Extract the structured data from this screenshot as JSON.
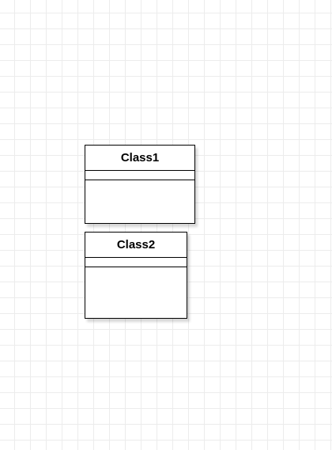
{
  "canvas": {
    "background": "#ffffff",
    "grid_color": "#ececec",
    "grid": true
  },
  "classes": [
    {
      "name": "Class1",
      "attributes": [],
      "operations": []
    },
    {
      "name": "Class2",
      "attributes": [],
      "operations": []
    }
  ],
  "colors": {
    "stroke": "#000000",
    "fill": "#ffffff",
    "text": "#000000"
  }
}
